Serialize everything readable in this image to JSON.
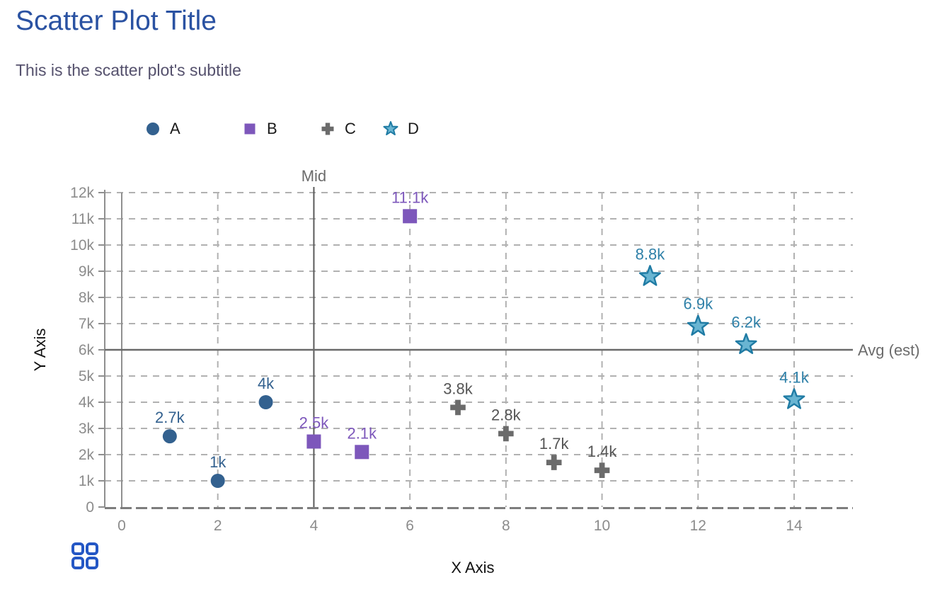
{
  "header": {
    "title": "Scatter Plot Title",
    "subtitle": "This is the scatter plot's subtitle"
  },
  "legend": [
    {
      "label": "A",
      "marker": "circle",
      "color": "#33618f"
    },
    {
      "label": "B",
      "marker": "square",
      "color": "#7d57bb"
    },
    {
      "label": "C",
      "marker": "plus",
      "color": "#6b6b6b"
    },
    {
      "label": "D",
      "marker": "star",
      "color": "#69b5d2",
      "stroke": "#1f7ba4"
    }
  ],
  "chart_data": {
    "type": "scatter",
    "title": "Scatter Plot Title",
    "subtitle": "This is the scatter plot's subtitle",
    "xlabel": "X Axis",
    "ylabel": "Y Axis",
    "xlim": [
      0,
      15.2
    ],
    "ylim": [
      0,
      12000
    ],
    "grid": true,
    "legend_position": "top",
    "x_ticks": [
      {
        "value": 0,
        "label": "0"
      },
      {
        "value": 2,
        "label": "2"
      },
      {
        "value": 4,
        "label": "4"
      },
      {
        "value": 6,
        "label": "6"
      },
      {
        "value": 8,
        "label": "8"
      },
      {
        "value": 10,
        "label": "10"
      },
      {
        "value": 12,
        "label": "12"
      },
      {
        "value": 14,
        "label": "14"
      }
    ],
    "y_ticks": [
      {
        "value": 0,
        "label": "0"
      },
      {
        "value": 1000,
        "label": "1k"
      },
      {
        "value": 2000,
        "label": "2k"
      },
      {
        "value": 3000,
        "label": "3k"
      },
      {
        "value": 4000,
        "label": "4k"
      },
      {
        "value": 5000,
        "label": "5k"
      },
      {
        "value": 6000,
        "label": "6k"
      },
      {
        "value": 7000,
        "label": "7k"
      },
      {
        "value": 8000,
        "label": "8k"
      },
      {
        "value": 9000,
        "label": "9k"
      },
      {
        "value": 10000,
        "label": "10k"
      },
      {
        "value": 11000,
        "label": "11k"
      },
      {
        "value": 12000,
        "label": "12k"
      }
    ],
    "series": [
      {
        "name": "A",
        "marker": "circle",
        "color": "#33618f",
        "label_color": "#33618f",
        "points": [
          {
            "x": 1,
            "y": 2700,
            "label": "2.7k"
          },
          {
            "x": 2,
            "y": 1000,
            "label": "1k"
          },
          {
            "x": 3,
            "y": 4000,
            "label": "4k"
          }
        ]
      },
      {
        "name": "B",
        "marker": "square",
        "color": "#7d57bb",
        "label_color": "#7d57bb",
        "points": [
          {
            "x": 4,
            "y": 2500,
            "label": "2.5k"
          },
          {
            "x": 5,
            "y": 2100,
            "label": "2.1k"
          },
          {
            "x": 6,
            "y": 11100,
            "label": "11.1k"
          }
        ]
      },
      {
        "name": "C",
        "marker": "plus",
        "color": "#6b6b6b",
        "label_color": "#555555",
        "points": [
          {
            "x": 7,
            "y": 3800,
            "label": "3.8k"
          },
          {
            "x": 8,
            "y": 2800,
            "label": "2.8k"
          },
          {
            "x": 9,
            "y": 1700,
            "label": "1.7k"
          },
          {
            "x": 10,
            "y": 1400,
            "label": "1.4k"
          }
        ]
      },
      {
        "name": "D",
        "marker": "star",
        "color": "#69b5d2",
        "stroke": "#1f7ba4",
        "label_color": "#2e80a8",
        "points": [
          {
            "x": 11,
            "y": 8800,
            "label": "8.8k"
          },
          {
            "x": 12,
            "y": 6900,
            "label": "6.9k"
          },
          {
            "x": 13,
            "y": 6200,
            "label": "6.2k"
          },
          {
            "x": 14,
            "y": 4100,
            "label": "4.1k"
          }
        ]
      }
    ],
    "reference_lines": [
      {
        "axis": "x",
        "value": 4,
        "label": "Mid"
      },
      {
        "axis": "y",
        "value": 6000,
        "label": "Avg (est)"
      }
    ]
  },
  "footer": {
    "logo_icon": "grid-icon",
    "logo_color": "#2457c5"
  }
}
